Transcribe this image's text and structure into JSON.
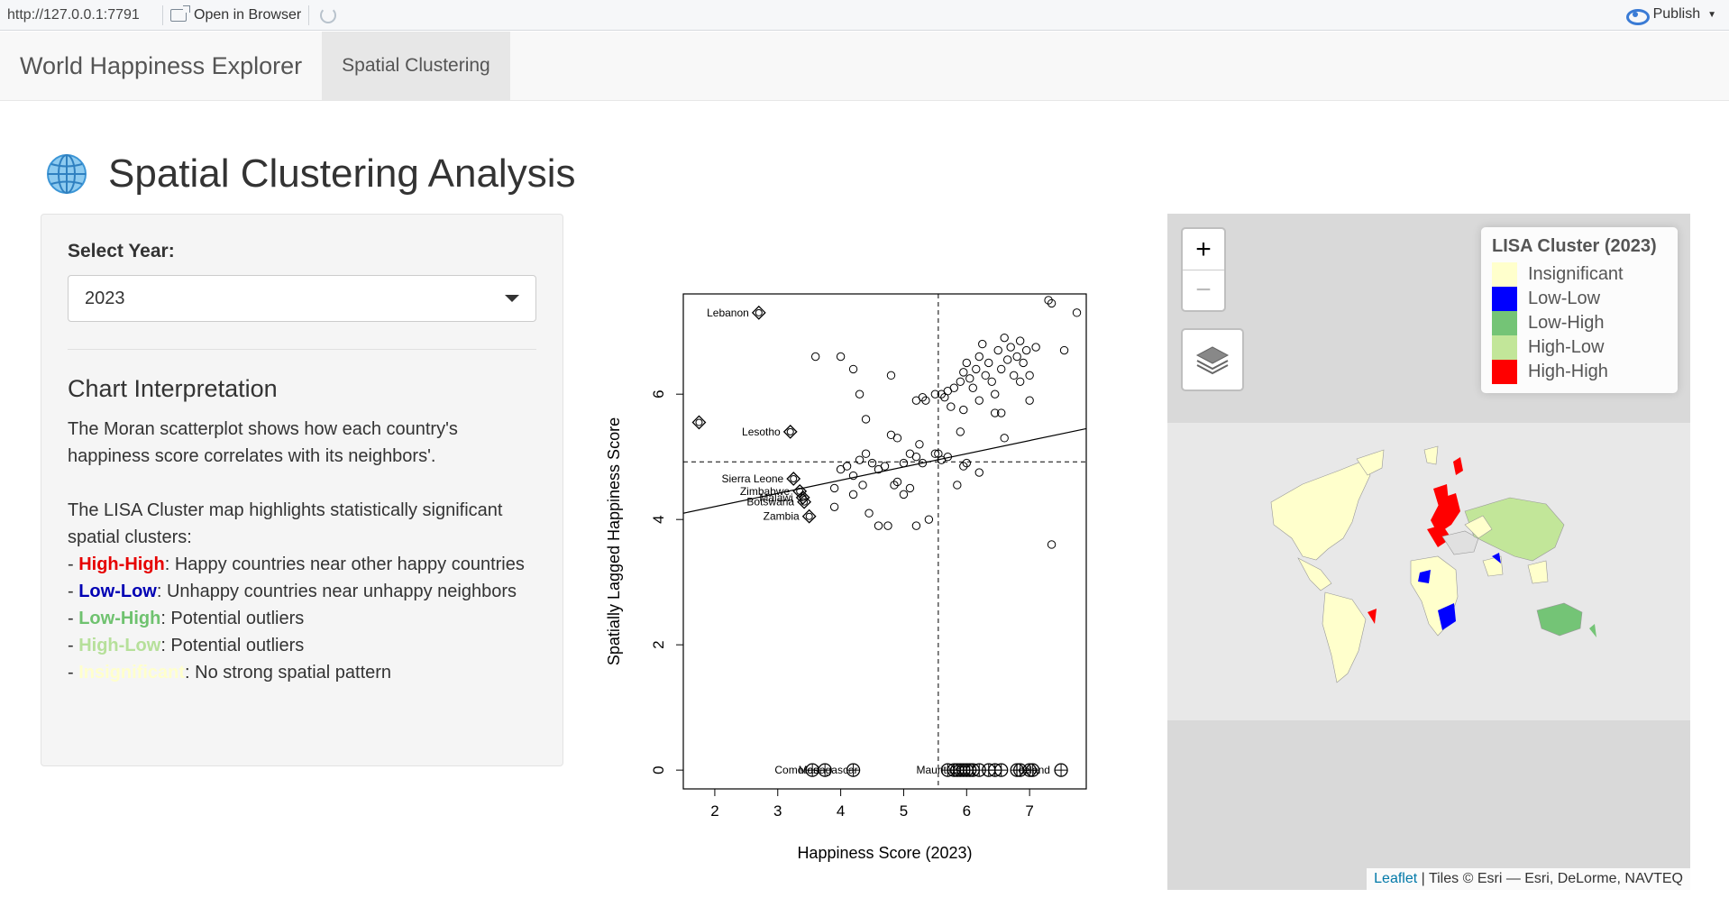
{
  "viewer": {
    "url": "http://127.0.0.1:7791",
    "open_in_browser": "Open in Browser",
    "publish": "Publish"
  },
  "navbar": {
    "brand": "World Happiness Explorer",
    "tabs": [
      {
        "label": "Spatial Clustering",
        "active": true
      }
    ]
  },
  "page": {
    "title": "Spatial Clustering Analysis",
    "icon": "globe-icon"
  },
  "sidebar": {
    "year_label": "Select Year:",
    "year_value": "2023",
    "section_title": "Chart Interpretation",
    "para1": "The Moran scatterplot shows how each country's happiness score correlates with its neighbors'.",
    "para2": "The LISA Cluster map highlights statistically significant spatial clusters:",
    "items": [
      {
        "term": "High-High",
        "desc": ": Happy countries near other happy countries"
      },
      {
        "term": "Low-Low",
        "desc": ": Unhappy countries near unhappy neighbors"
      },
      {
        "term": "Low-High",
        "desc": ": Potential outliers"
      },
      {
        "term": "High-Low",
        "desc": ": Potential outliers"
      },
      {
        "term": "Insignificant",
        "desc": ": No strong spatial pattern"
      }
    ]
  },
  "chart_data": {
    "type": "scatter",
    "title": "",
    "xlabel": "Happiness Score (2023)",
    "ylabel": "Spatially Lagged Happiness Score",
    "xlim": [
      1.5,
      7.9
    ],
    "ylim": [
      -0.3,
      7.6
    ],
    "xticks": [
      2,
      3,
      4,
      5,
      6,
      7
    ],
    "yticks": [
      0,
      2,
      4,
      6
    ],
    "mean_x": 5.55,
    "mean_y": 4.92,
    "regression": {
      "x1": 1.5,
      "y1": 4.1,
      "x2": 7.9,
      "y2": 5.45
    },
    "points": [
      [
        3.6,
        6.6
      ],
      [
        4.0,
        6.6
      ],
      [
        4.2,
        6.4
      ],
      [
        4.3,
        6.0
      ],
      [
        4.4,
        5.6
      ],
      [
        4.8,
        5.35
      ],
      [
        4.9,
        5.3
      ],
      [
        4.8,
        6.3
      ],
      [
        5.2,
        5.9
      ],
      [
        5.3,
        5.95
      ],
      [
        5.35,
        5.9
      ],
      [
        5.5,
        6.0
      ],
      [
        5.6,
        6.0
      ],
      [
        5.7,
        6.05
      ],
      [
        5.75,
        5.8
      ],
      [
        5.65,
        5.95
      ],
      [
        5.8,
        6.1
      ],
      [
        5.9,
        6.2
      ],
      [
        5.95,
        6.35
      ],
      [
        6.0,
        6.5
      ],
      [
        6.05,
        6.25
      ],
      [
        6.1,
        6.1
      ],
      [
        6.15,
        6.4
      ],
      [
        6.2,
        6.6
      ],
      [
        6.25,
        6.8
      ],
      [
        6.3,
        6.3
      ],
      [
        6.35,
        6.5
      ],
      [
        6.4,
        6.2
      ],
      [
        6.45,
        6.0
      ],
      [
        6.5,
        6.7
      ],
      [
        6.55,
        6.4
      ],
      [
        6.6,
        6.9
      ],
      [
        6.65,
        6.55
      ],
      [
        6.7,
        6.75
      ],
      [
        6.75,
        6.3
      ],
      [
        6.8,
        6.6
      ],
      [
        6.85,
        6.85
      ],
      [
        6.9,
        6.5
      ],
      [
        6.95,
        6.7
      ],
      [
        7.0,
        6.3
      ],
      [
        7.1,
        6.75
      ],
      [
        6.85,
        6.2
      ],
      [
        6.6,
        5.3
      ],
      [
        6.45,
        5.7
      ],
      [
        6.55,
        5.7
      ],
      [
        6.2,
        5.9
      ],
      [
        5.95,
        5.75
      ],
      [
        7.3,
        7.5
      ],
      [
        7.35,
        7.45
      ],
      [
        7.55,
        6.7
      ],
      [
        7.75,
        7.3
      ],
      [
        7.0,
        5.9
      ],
      [
        5.6,
        4.95
      ],
      [
        5.5,
        5.05
      ],
      [
        5.3,
        4.9
      ],
      [
        5.25,
        5.2
      ],
      [
        5.2,
        5.0
      ],
      [
        5.1,
        5.05
      ],
      [
        5.0,
        4.9
      ],
      [
        4.9,
        4.6
      ],
      [
        4.85,
        4.55
      ],
      [
        5.0,
        4.4
      ],
      [
        5.1,
        4.5
      ],
      [
        4.7,
        4.85
      ],
      [
        4.6,
        4.8
      ],
      [
        4.5,
        4.9
      ],
      [
        4.4,
        5.05
      ],
      [
        4.3,
        4.95
      ],
      [
        4.2,
        4.7
      ],
      [
        4.1,
        4.85
      ],
      [
        4.0,
        4.8
      ],
      [
        3.9,
        4.5
      ],
      [
        3.9,
        4.2
      ],
      [
        4.2,
        4.4
      ],
      [
        4.35,
        4.55
      ],
      [
        4.45,
        4.1
      ],
      [
        4.6,
        3.9
      ],
      [
        4.75,
        3.9
      ],
      [
        5.2,
        3.9
      ],
      [
        5.4,
        4.0
      ],
      [
        5.85,
        4.55
      ],
      [
        5.95,
        4.85
      ],
      [
        6.0,
        4.9
      ],
      [
        6.2,
        4.75
      ],
      [
        5.9,
        5.4
      ],
      [
        7.35,
        3.6
      ],
      [
        5.55,
        5.05
      ],
      [
        5.7,
        5.0
      ]
    ],
    "influential": [
      {
        "label": "Lebanon",
        "x": 2.7,
        "y": 7.3
      },
      {
        "label": "",
        "x": 1.75,
        "y": 5.55
      },
      {
        "label": "Lesotho",
        "x": 3.2,
        "y": 5.4
      },
      {
        "label": "Sierra Leone",
        "x": 3.25,
        "y": 4.65
      },
      {
        "label": "Zimbabwe",
        "x": 3.35,
        "y": 4.45
      },
      {
        "label": "Malawi",
        "x": 3.4,
        "y": 4.35
      },
      {
        "label": "Botswana",
        "x": 3.42,
        "y": 4.28
      },
      {
        "label": "Zambia",
        "x": 3.5,
        "y": 4.05
      }
    ],
    "zero_points_labeled": [
      "Comoros",
      "Madagascar",
      "Mauritius",
      "Iceland"
    ],
    "zero_points_x": [
      3.55,
      3.75,
      4.2,
      5.7,
      5.8,
      5.85,
      5.9,
      5.95,
      6.0,
      6.05,
      6.1,
      6.2,
      6.35,
      6.45,
      6.55,
      6.8,
      6.85,
      7.0,
      7.05,
      7.5
    ]
  },
  "map": {
    "zoom_in": "+",
    "zoom_out": "−",
    "legend_title": "LISA Cluster (2023)",
    "legend": [
      {
        "label": "Insignificant",
        "color": "#ffffcc"
      },
      {
        "label": "Low-Low",
        "color": "#0000ff"
      },
      {
        "label": "Low-High",
        "color": "#74c476"
      },
      {
        "label": "High-Low",
        "color": "#c2e699"
      },
      {
        "label": "High-High",
        "color": "#ff0000"
      }
    ],
    "attribution_link": "Leaflet",
    "attribution_text": " | Tiles © Esri — Esri, DeLorme, NAVTEQ"
  }
}
